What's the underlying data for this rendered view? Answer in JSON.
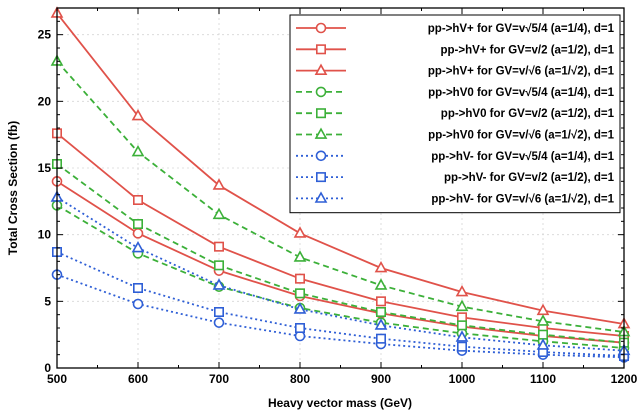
{
  "chart_data": {
    "type": "line",
    "title": "",
    "xlabel": "Heavy vector mass (GeV)",
    "ylabel": "Total Cross Section (fb)",
    "xlim": [
      500,
      1200
    ],
    "ylim": [
      0,
      27
    ],
    "x_ticks": [
      "500",
      "600",
      "700",
      "800",
      "900",
      "1000",
      "1100",
      "1200"
    ],
    "y_ticks": [
      "0",
      "5",
      "10",
      "15",
      "20",
      "25"
    ],
    "grid": true,
    "legend_position": "top-right",
    "x": [
      500,
      600,
      700,
      800,
      900,
      1000,
      1100,
      1200
    ],
    "series": [
      {
        "name": "pp->hV+ for GV=v√5/4 (a=1/4), d=1",
        "color": "#e0524a",
        "dash": "solid",
        "marker": "circle",
        "values": [
          14.0,
          10.1,
          7.3,
          5.4,
          4.1,
          3.1,
          2.4,
          1.9
        ]
      },
      {
        "name": "pp->hV+ for GV=v/2 (a=1/2), d=1",
        "color": "#e0524a",
        "dash": "solid",
        "marker": "square",
        "values": [
          17.6,
          12.6,
          9.1,
          6.7,
          5.0,
          3.8,
          3.0,
          2.4
        ]
      },
      {
        "name": "pp->hV+ for GV=v/√6 (a=1/√2), d=1",
        "color": "#e0524a",
        "dash": "solid",
        "marker": "triangle",
        "values": [
          26.6,
          18.9,
          13.7,
          10.1,
          7.5,
          5.7,
          4.3,
          3.3
        ]
      },
      {
        "name": "pp->hV0 for GV=v√5/4 (a=1/4), d=1",
        "color": "#3cb039",
        "dash": "dashed",
        "marker": "circle",
        "values": [
          12.2,
          8.6,
          6.1,
          4.5,
          3.4,
          2.6,
          2.0,
          1.5
        ]
      },
      {
        "name": "pp->hV0 for GV=v/2 (a=1/2), d=1",
        "color": "#3cb039",
        "dash": "dashed",
        "marker": "square",
        "values": [
          15.3,
          10.8,
          7.7,
          5.6,
          4.2,
          3.2,
          2.5,
          1.9
        ]
      },
      {
        "name": "pp->hV0 for GV=v/√6 (a=1/√2), d=1",
        "color": "#3cb039",
        "dash": "dashed",
        "marker": "triangle",
        "values": [
          23.0,
          16.2,
          11.5,
          8.3,
          6.2,
          4.6,
          3.5,
          2.7
        ]
      },
      {
        "name": "pp->hV- for GV=v√5/4 (a=1/4), d=1",
        "color": "#2f5fd6",
        "dash": "dotted",
        "marker": "circle",
        "values": [
          7.0,
          4.8,
          3.4,
          2.4,
          1.8,
          1.3,
          1.0,
          0.8
        ]
      },
      {
        "name": "pp->hV- for GV=v/2 (a=1/2), d=1",
        "color": "#2f5fd6",
        "dash": "dotted",
        "marker": "square",
        "values": [
          8.7,
          6.0,
          4.2,
          3.0,
          2.2,
          1.6,
          1.2,
          0.9
        ]
      },
      {
        "name": "pp->hV- for GV=v/√6 (a=1/√2), d=1",
        "color": "#2f5fd6",
        "dash": "dotted",
        "marker": "triangle",
        "values": [
          12.8,
          9.0,
          6.2,
          4.4,
          3.2,
          2.3,
          1.7,
          1.3
        ]
      }
    ]
  }
}
